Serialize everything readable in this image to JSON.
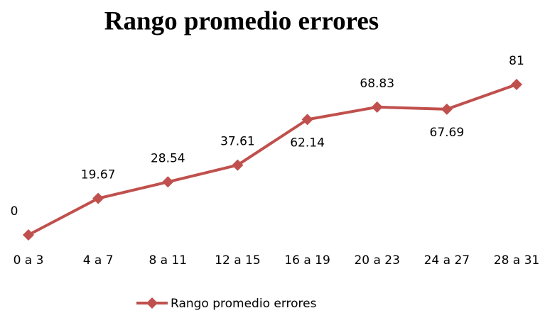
{
  "chart_data": {
    "type": "line",
    "title": "Rango promedio errores",
    "categories": [
      "0 a 3",
      "4 a 7",
      "8 a 11",
      "12 a 15",
      "16 a 19",
      "20 a 23",
      "24 a 27",
      "28 a 31"
    ],
    "series": [
      {
        "name": "Rango promedio errores",
        "color": "#c0504d",
        "values": [
          0,
          19.67,
          28.54,
          37.61,
          62.14,
          68.83,
          67.69,
          81
        ]
      }
    ],
    "legend": "bottom"
  }
}
